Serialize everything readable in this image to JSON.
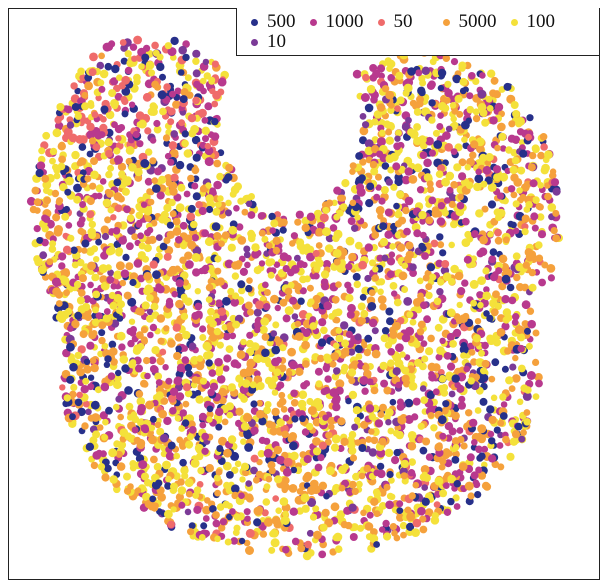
{
  "chart_data": {
    "type": "scatter",
    "title": "",
    "xlabel": "",
    "ylabel": "",
    "grid": false,
    "legend_position": "top-right",
    "series": [
      {
        "name": "500",
        "color": "#27308a"
      },
      {
        "name": "1000",
        "color": "#b8398e"
      },
      {
        "name": "50",
        "color": "#ef6b6b"
      },
      {
        "name": "5000",
        "color": "#f5a13c"
      },
      {
        "name": "100",
        "color": "#f4e13a"
      },
      {
        "name": "10",
        "color": "#7b3a97"
      }
    ]
  }
}
